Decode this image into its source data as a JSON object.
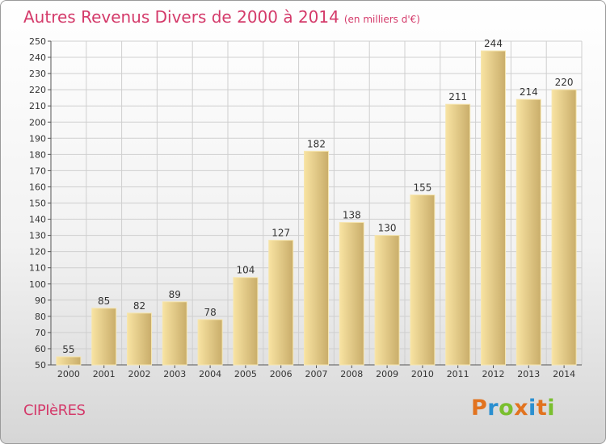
{
  "header": {
    "title": "Autres Revenus Divers de 2000 à 2014",
    "unit": "(en milliers d'€)"
  },
  "footer": {
    "commune": "CIPIèRES",
    "logo": "Proxiti",
    "logo_colors": [
      "#e2731f",
      "#2a8fd0",
      "#7abf2f",
      "#e2731f",
      "#2a8fd0",
      "#e2731f",
      "#7abf2f"
    ]
  },
  "colors": {
    "title": "#d43a6a",
    "bar_light": "#f8e3a2",
    "bar_dark": "#c9ad6a",
    "grid": "#cfcfcf",
    "axis": "#555555"
  },
  "chart_data": {
    "type": "bar",
    "title": "Autres Revenus Divers de 2000 à 2014",
    "xlabel": "",
    "ylabel": "",
    "categories": [
      "2000",
      "2001",
      "2002",
      "2003",
      "2004",
      "2005",
      "2006",
      "2007",
      "2008",
      "2009",
      "2010",
      "2011",
      "2012",
      "2013",
      "2014"
    ],
    "values": [
      55,
      85,
      82,
      89,
      78,
      104,
      127,
      182,
      138,
      130,
      155,
      211,
      244,
      214,
      220
    ],
    "ylim": [
      50,
      250
    ],
    "ytick_step": 10,
    "grid": true,
    "data_labels": true
  }
}
